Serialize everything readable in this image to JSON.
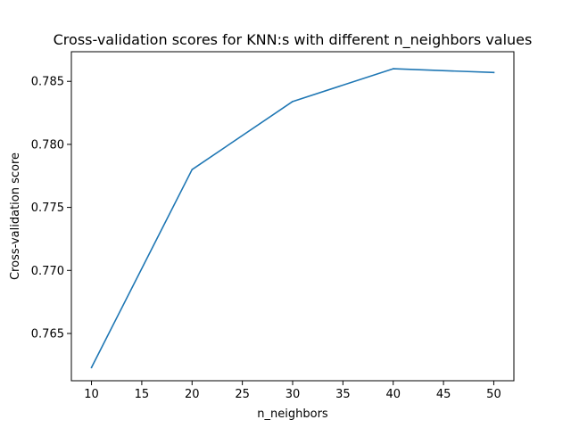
{
  "chart_data": {
    "type": "line",
    "title": "Cross-validation scores for KNN:s with different n_neighbors values",
    "xlabel": "n_neighbors",
    "ylabel": "Cross-validation score",
    "x": [
      10,
      20,
      30,
      40,
      50
    ],
    "series": [
      {
        "values": [
          0.7623,
          0.778,
          0.7834,
          0.786,
          0.7857
        ],
        "color": "#1f77b4"
      }
    ],
    "xlim": [
      8,
      52
    ],
    "ylim": [
      0.76125,
      0.78735
    ],
    "xticks": [
      10,
      15,
      20,
      25,
      30,
      35,
      40,
      45,
      50
    ],
    "xtick_labels": [
      "10",
      "15",
      "20",
      "25",
      "30",
      "35",
      "40",
      "45",
      "50"
    ],
    "yticks": [
      0.765,
      0.77,
      0.775,
      0.78,
      0.785
    ],
    "ytick_labels": [
      "0.765",
      "0.770",
      "0.775",
      "0.780",
      "0.785"
    ],
    "grid": false,
    "legend": false
  }
}
